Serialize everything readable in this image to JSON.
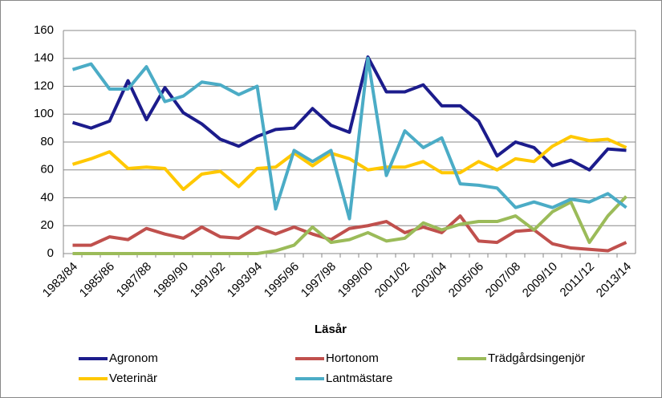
{
  "chart_data": {
    "type": "line",
    "xlabel": "Läsår",
    "categories": [
      "1983/84",
      null,
      "1985/86",
      null,
      "1987/88",
      null,
      "1989/90",
      null,
      "1991/92",
      null,
      "1993/94",
      null,
      "1995/96",
      null,
      "1997/98",
      null,
      "1999/00",
      null,
      "2001/02",
      null,
      "2003/04",
      null,
      "2005/06",
      null,
      "2007/08",
      null,
      "2009/10",
      null,
      "2011/12",
      null,
      "2013/14"
    ],
    "ylim": [
      0,
      160
    ],
    "yticks": [
      0,
      20,
      40,
      60,
      80,
      100,
      120,
      140,
      160
    ],
    "grid": true,
    "series": [
      {
        "name": "Agronom",
        "color": "#1c1c8c",
        "values": [
          94,
          90,
          95,
          124,
          96,
          119,
          101,
          93,
          82,
          77,
          84,
          89,
          90,
          104,
          92,
          87,
          141,
          116,
          116,
          121,
          106,
          106,
          95,
          70,
          80,
          76,
          63,
          67,
          60,
          75,
          74
        ]
      },
      {
        "name": "Hortonom",
        "color": "#c0504d",
        "values": [
          6,
          6,
          12,
          10,
          18,
          14,
          11,
          19,
          12,
          11,
          19,
          14,
          19,
          14,
          10,
          18,
          20,
          23,
          15,
          19,
          15,
          27,
          9,
          8,
          16,
          17,
          7,
          4,
          3,
          2,
          8
        ]
      },
      {
        "name": "Trädgårdsingenjör",
        "color": "#9bbb59",
        "values": [
          0,
          0,
          0,
          0,
          0,
          0,
          0,
          0,
          0,
          0,
          0,
          2,
          6,
          19,
          8,
          10,
          15,
          9,
          11,
          22,
          17,
          21,
          23,
          23,
          27,
          17,
          30,
          37,
          8,
          27,
          41
        ]
      },
      {
        "name": "Veterinär",
        "color": "#ffc800",
        "values": [
          64,
          68,
          73,
          61,
          62,
          61,
          46,
          57,
          59,
          48,
          61,
          62,
          72,
          63,
          72,
          68,
          60,
          62,
          62,
          66,
          58,
          58,
          66,
          60,
          68,
          66,
          77,
          84,
          81,
          82,
          76
        ]
      },
      {
        "name": "Lantmästare",
        "color": "#4bacc6",
        "values": [
          132,
          136,
          118,
          118,
          134,
          109,
          113,
          123,
          121,
          114,
          120,
          32,
          74,
          66,
          74,
          25,
          140,
          56,
          88,
          76,
          83,
          50,
          49,
          47,
          33,
          37,
          33,
          39,
          37,
          43,
          33
        ]
      }
    ]
  }
}
